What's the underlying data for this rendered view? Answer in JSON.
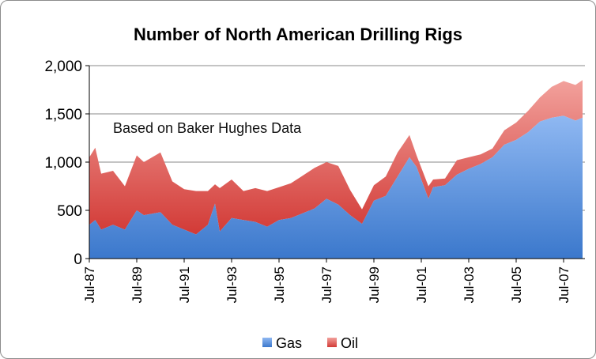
{
  "chart_data": {
    "type": "area",
    "stacked": true,
    "title": "Number of North American Drilling Rigs",
    "annotation": "Based on Baker Hughes Data",
    "xlabel": "",
    "ylabel": "",
    "ylim": [
      0,
      2000
    ],
    "yticks": [
      0,
      500,
      1000,
      1500,
      2000
    ],
    "ytick_labels": [
      "0",
      "500",
      "1,000",
      "1,500",
      "2,000"
    ],
    "xlim": [
      1987.5,
      2008.4
    ],
    "xticks": [
      1987.5,
      1989.5,
      1991.5,
      1993.5,
      1995.5,
      1997.5,
      1999.5,
      2001.5,
      2003.5,
      2005.5,
      2007.5
    ],
    "xtick_labels": [
      "Jul-87",
      "Jul-89",
      "Jul-91",
      "Jul-93",
      "Jul-95",
      "Jul-97",
      "Jul-99",
      "Jul-01",
      "Jul-03",
      "Jul-05",
      "Jul-07"
    ],
    "grid": "horizontal",
    "legend_position": "bottom",
    "colors": {
      "gas": "#4a86d4",
      "oil": "#dc4c4a"
    },
    "x": [
      1987.5,
      1987.75,
      1988.0,
      1988.5,
      1989.0,
      1989.5,
      1989.8,
      1990.5,
      1991.0,
      1991.5,
      1992.0,
      1992.5,
      1992.8,
      1993.0,
      1993.5,
      1994.0,
      1994.5,
      1995.0,
      1995.5,
      1996.0,
      1997.0,
      1997.5,
      1998.0,
      1998.5,
      1999.0,
      1999.5,
      2000.0,
      2000.5,
      2001.0,
      2001.3,
      2001.8,
      2002.0,
      2002.5,
      2003.0,
      2003.5,
      2004.0,
      2004.5,
      2005.0,
      2005.5,
      2006.0,
      2006.5,
      2007.0,
      2007.5,
      2008.0,
      2008.3
    ],
    "series": [
      {
        "name": "Gas",
        "values": [
          350,
          400,
          300,
          350,
          300,
          500,
          450,
          480,
          350,
          300,
          250,
          350,
          570,
          280,
          420,
          400,
          380,
          330,
          400,
          420,
          520,
          620,
          560,
          450,
          360,
          600,
          650,
          850,
          1050,
          950,
          620,
          740,
          760,
          870,
          930,
          980,
          1050,
          1180,
          1230,
          1310,
          1420,
          1460,
          1480,
          1430,
          1460
        ]
      },
      {
        "name": "Oil",
        "values": [
          700,
          750,
          580,
          560,
          450,
          570,
          550,
          620,
          450,
          420,
          450,
          350,
          200,
          450,
          400,
          300,
          350,
          370,
          340,
          360,
          420,
          380,
          400,
          260,
          150,
          160,
          200,
          250,
          230,
          120,
          130,
          80,
          70,
          150,
          120,
          100,
          90,
          150,
          180,
          220,
          250,
          320,
          360,
          370,
          390
        ]
      }
    ]
  }
}
